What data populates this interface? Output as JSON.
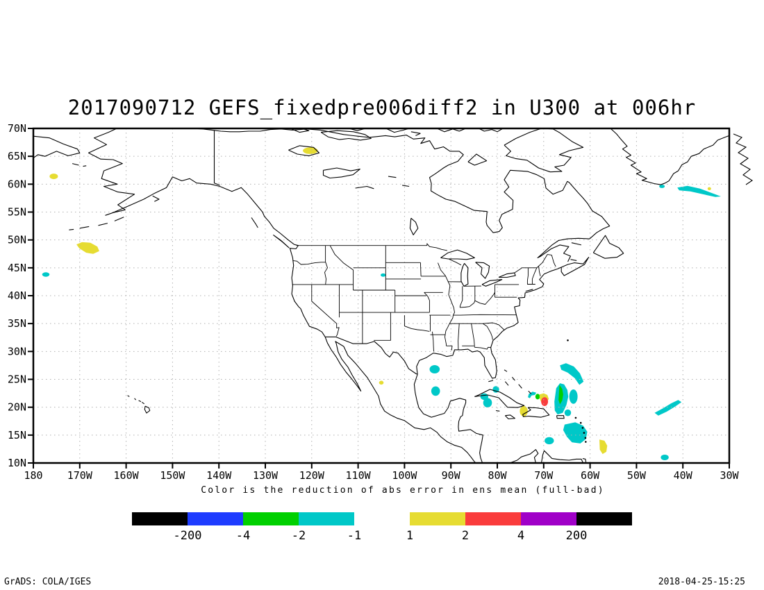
{
  "footer": {
    "left": "GrADS: COLA/IGES",
    "right": "2018-04-25-15:25"
  },
  "chart_data": {
    "type": "filled-contour-map",
    "title": "2017090712 GEFS_fixedpre006diff2 in U300 at 006hr",
    "caption": "Color is the reduction of abs error in ens mean (full-bad)",
    "x_axis": {
      "ticks": [
        "180",
        "170W",
        "160W",
        "150W",
        "140W",
        "130W",
        "120W",
        "110W",
        "100W",
        "90W",
        "80W",
        "70W",
        "60W",
        "50W",
        "40W",
        "30W"
      ],
      "values": [
        -180,
        -170,
        -160,
        -150,
        -140,
        -130,
        -120,
        -110,
        -100,
        -90,
        -80,
        -70,
        -60,
        -50,
        -40,
        -30
      ],
      "range_deg_east": [
        -180,
        -30
      ]
    },
    "y_axis": {
      "ticks": [
        "70N",
        "65N",
        "60N",
        "55N",
        "50N",
        "45N",
        "40N",
        "35N",
        "30N",
        "25N",
        "20N",
        "15N",
        "10N"
      ],
      "values": [
        70,
        65,
        60,
        55,
        50,
        45,
        40,
        35,
        30,
        25,
        20,
        15,
        10
      ],
      "range_deg_north": [
        10,
        70
      ]
    },
    "gridlines": {
      "style": "dotted",
      "color": "#b0b0b0",
      "lon_step": 10,
      "lat_step": 5
    },
    "palette": {
      "black": "#000000",
      "blue": "#1e3cff",
      "green": "#00d000",
      "cyan": "#00c8c8",
      "yellow": "#e6dc32",
      "red": "#fa3c3c",
      "purple": "#a000c8"
    },
    "colorbars": [
      {
        "colors": [
          "#000000",
          "#1e3cff",
          "#00d000",
          "#00c8c8"
        ],
        "labels": [
          "-200",
          "-4",
          "-2",
          "-1"
        ],
        "label_side": "right"
      },
      {
        "colors": [
          "#e6dc32",
          "#fa3c3c",
          "#a000c8",
          "#000000"
        ],
        "labels": [
          "1",
          "2",
          "4",
          "200"
        ],
        "label_side": "left"
      }
    ],
    "patches": [
      {
        "shape": "ellipse",
        "color": "#e6dc32",
        "band": "1..2",
        "lon": -175.6,
        "lat": 61.4,
        "rlon": 0.9,
        "rlat": 0.5
      },
      {
        "shape": "ellipse",
        "color": "#e6dc32",
        "band": "1..2",
        "lon": -120.3,
        "lat": 66.0,
        "rlon": 1.6,
        "rlat": 0.6
      },
      {
        "shape": "poly",
        "color": "#e6dc32",
        "band": "1..2",
        "pts": [
          [
            -170.7,
            49.2
          ],
          [
            -169.5,
            49.6
          ],
          [
            -167.7,
            49.5
          ],
          [
            -166.2,
            48.8
          ],
          [
            -165.8,
            48.0
          ],
          [
            -167.1,
            47.5
          ],
          [
            -168.6,
            47.7
          ],
          [
            -170.1,
            48.5
          ]
        ]
      },
      {
        "shape": "ellipse",
        "color": "#00c8c8",
        "band": "-2..-1",
        "lon": -177.3,
        "lat": 43.8,
        "rlon": 0.8,
        "rlat": 0.4
      },
      {
        "shape": "poly",
        "color": "#00c8c8",
        "band": "-2..-1",
        "pts": [
          [
            -41.2,
            59.4
          ],
          [
            -39.0,
            59.7
          ],
          [
            -36.3,
            59.2
          ],
          [
            -33.7,
            58.4
          ],
          [
            -31.8,
            57.8
          ],
          [
            -33.0,
            57.7
          ],
          [
            -35.7,
            58.2
          ],
          [
            -38.4,
            58.7
          ],
          [
            -40.8,
            58.9
          ]
        ]
      },
      {
        "shape": "ellipse",
        "color": "#00c8c8",
        "band": "-2..-1",
        "lon": -44.5,
        "lat": 59.6,
        "rlon": 0.6,
        "rlat": 0.3
      },
      {
        "shape": "ellipse",
        "color": "#e6dc32",
        "band": "1..2",
        "lon": -34.3,
        "lat": 59.2,
        "rlon": 0.35,
        "rlat": 0.25
      },
      {
        "shape": "ellipse",
        "color": "#00c8c8",
        "band": "-2..-1",
        "lon": -93.5,
        "lat": 26.8,
        "rlon": 1.1,
        "rlat": 0.75
      },
      {
        "shape": "ellipse",
        "color": "#00c8c8",
        "band": "-2..-1",
        "lon": -93.3,
        "lat": 22.9,
        "rlon": 0.95,
        "rlat": 0.85
      },
      {
        "shape": "ellipse",
        "color": "#e6dc32",
        "band": "1..2",
        "lon": -105.0,
        "lat": 24.4,
        "rlon": 0.5,
        "rlat": 0.35
      },
      {
        "shape": "ellipse",
        "color": "#00c8c8",
        "band": "-2..-1",
        "lon": -104.6,
        "lat": 43.7,
        "rlon": 0.55,
        "rlat": 0.3
      },
      {
        "shape": "ellipse",
        "color": "#00c8c8",
        "band": "-2..-1",
        "lon": -82.8,
        "lat": 21.9,
        "rlon": 0.85,
        "rlat": 0.6
      },
      {
        "shape": "ellipse",
        "color": "#00c8c8",
        "band": "-2..-1",
        "lon": -82.1,
        "lat": 20.8,
        "rlon": 0.95,
        "rlat": 0.85
      },
      {
        "shape": "ellipse",
        "color": "#00c8c8",
        "band": "-2..-1",
        "lon": -80.3,
        "lat": 23.2,
        "rlon": 0.7,
        "rlat": 0.6
      },
      {
        "shape": "poly",
        "color": "#00c8c8",
        "band": "-2..-1",
        "pts": [
          [
            -73.2,
            22.4
          ],
          [
            -72.4,
            22.8
          ],
          [
            -71.6,
            22.6
          ],
          [
            -71.9,
            22.2
          ],
          [
            -72.6,
            22.1
          ],
          [
            -73.0,
            21.6
          ],
          [
            -73.4,
            21.8
          ]
        ]
      },
      {
        "shape": "ellipse",
        "color": "#00d000",
        "band": "-4..-2",
        "lon": -71.3,
        "lat": 21.9,
        "rlon": 0.5,
        "rlat": 0.5
      },
      {
        "shape": "poly",
        "color": "#e6dc32",
        "band": "1..2",
        "pts": [
          [
            -70.9,
            22.3
          ],
          [
            -70.0,
            22.5
          ],
          [
            -69.2,
            22.2
          ],
          [
            -68.9,
            21.5
          ],
          [
            -69.3,
            20.9
          ],
          [
            -69.9,
            20.7
          ],
          [
            -70.6,
            21.0
          ],
          [
            -70.9,
            21.7
          ]
        ]
      },
      {
        "shape": "ellipse",
        "color": "#fa3c3c",
        "band": "2..4",
        "lon": -69.8,
        "lat": 21.0,
        "rlon": 0.75,
        "rlat": 0.8
      },
      {
        "shape": "ellipse",
        "color": "#e6dc32",
        "band": "1..2",
        "lon": -74.3,
        "lat": 19.3,
        "rlon": 0.85,
        "rlat": 0.95
      },
      {
        "shape": "poly",
        "color": "#00c8c8",
        "band": "-2..-1",
        "pts": [
          [
            -66.5,
            27.5
          ],
          [
            -65.2,
            27.9
          ],
          [
            -63.5,
            27.3
          ],
          [
            -62.2,
            26.1
          ],
          [
            -61.4,
            24.6
          ],
          [
            -62.3,
            24.0
          ],
          [
            -63.3,
            25.2
          ],
          [
            -64.8,
            26.2
          ],
          [
            -66.2,
            26.7
          ]
        ]
      },
      {
        "shape": "poly",
        "color": "#00c8c8",
        "band": "-2..-1",
        "pts": [
          [
            -67.3,
            23.4
          ],
          [
            -66.5,
            24.3
          ],
          [
            -65.6,
            24.1
          ],
          [
            -64.9,
            23.1
          ],
          [
            -64.7,
            21.9
          ],
          [
            -65.1,
            20.4
          ],
          [
            -65.9,
            19.0
          ],
          [
            -67.0,
            18.7
          ],
          [
            -67.6,
            19.4
          ],
          [
            -67.7,
            21.0
          ]
        ]
      },
      {
        "shape": "poly",
        "color": "#00d000",
        "band": "-4..-2",
        "pts": [
          [
            -66.6,
            24.0
          ],
          [
            -66.0,
            23.3
          ],
          [
            -65.8,
            22.3
          ],
          [
            -66.0,
            21.2
          ],
          [
            -66.5,
            20.5
          ],
          [
            -66.8,
            21.3
          ],
          [
            -66.7,
            22.5
          ]
        ]
      },
      {
        "shape": "ellipse",
        "color": "#00c8c8",
        "band": "-2..-1",
        "lon": -63.6,
        "lat": 21.9,
        "rlon": 0.9,
        "rlat": 1.3
      },
      {
        "shape": "ellipse",
        "color": "#00c8c8",
        "band": "-2..-1",
        "lon": -64.8,
        "lat": 19.0,
        "rlon": 0.7,
        "rlat": 0.6
      },
      {
        "shape": "poly",
        "color": "#00c8c8",
        "band": "-2..-1",
        "pts": [
          [
            -65.5,
            16.9
          ],
          [
            -63.2,
            17.3
          ],
          [
            -61.5,
            16.7
          ],
          [
            -60.6,
            15.6
          ],
          [
            -60.9,
            14.3
          ],
          [
            -62.1,
            13.5
          ],
          [
            -63.9,
            13.7
          ],
          [
            -65.0,
            14.7
          ],
          [
            -65.8,
            15.9
          ]
        ]
      },
      {
        "shape": "ellipse",
        "color": "#00c8c8",
        "band": "-2..-1",
        "lon": -68.8,
        "lat": 14.0,
        "rlon": 1.0,
        "rlat": 0.65
      },
      {
        "shape": "poly",
        "color": "#e6dc32",
        "band": "1..2",
        "pts": [
          [
            -58.0,
            14.2
          ],
          [
            -56.9,
            14.0
          ],
          [
            -56.3,
            13.1
          ],
          [
            -56.5,
            12.0
          ],
          [
            -57.3,
            11.6
          ],
          [
            -57.9,
            12.4
          ]
        ]
      },
      {
        "shape": "poly",
        "color": "#00c8c8",
        "band": "-2..-1",
        "pts": [
          [
            -46.1,
            19.0
          ],
          [
            -44.3,
            19.8
          ],
          [
            -42.5,
            20.7
          ],
          [
            -41.0,
            21.3
          ],
          [
            -40.3,
            20.9
          ],
          [
            -41.7,
            20.1
          ],
          [
            -43.5,
            19.2
          ],
          [
            -45.3,
            18.5
          ]
        ]
      },
      {
        "shape": "ellipse",
        "color": "#00c8c8",
        "band": "-2..-1",
        "lon": -43.9,
        "lat": 11.0,
        "rlon": 0.85,
        "rlat": 0.5
      }
    ]
  }
}
